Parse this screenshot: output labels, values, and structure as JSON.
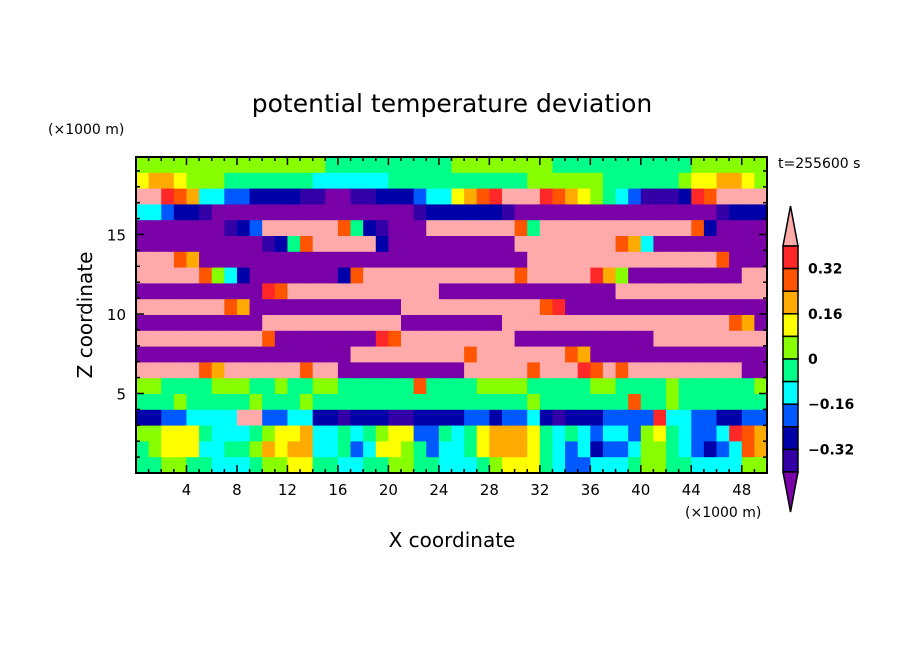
{
  "chart_data": {
    "type": "heatmap",
    "title": "potential temperature deviation",
    "xlabel": "X coordinate",
    "ylabel": "Z coordinate",
    "x_units": "(×1000 m)",
    "y_units": "(×1000 m)",
    "time_label": "t=255600 s",
    "xlim": [
      0,
      50
    ],
    "ylim": [
      0,
      19.875
    ],
    "x_ticks": [
      "4",
      "8",
      "12",
      "16",
      "20",
      "24",
      "28",
      "32",
      "36",
      "40",
      "44",
      "48"
    ],
    "x_tick_values": [
      4,
      8,
      12,
      16,
      20,
      24,
      28,
      32,
      36,
      40,
      44,
      48
    ],
    "y_ticks": [
      "5",
      "10",
      "15"
    ],
    "y_tick_values": [
      5,
      10,
      15
    ],
    "levels": [
      -0.4,
      -0.32,
      -0.24,
      -0.16,
      -0.08,
      0,
      0.08,
      0.16,
      0.24,
      0.32,
      0.4
    ],
    "colorbar_labels": [
      "0.32",
      "0.16",
      "0",
      "−0.16",
      "−0.32"
    ],
    "colorbar_label_values": [
      0.32,
      0.16,
      0,
      -0.16,
      -0.32
    ],
    "colors": [
      "#7a00a8",
      "#3300a8",
      "#0000a8",
      "#0058ff",
      "#00ffff",
      "#00ff88",
      "#88ff00",
      "#ffff00",
      "#ffaa00",
      "#ff5500",
      "#ff2828",
      "#ffaaaa"
    ],
    "grid_encoding": "each char is a color class index 0-11 (0..9, A=10, B=11); rows top (z=19.9) to bottom (z=0), columns x=0..50",
    "grid": [
      "66666666666666655555555556666666655555555555666666",
      "78876665555555444444555555555556666665555556778876",
      "BBA9844332222110011222344789ABBBA98765431112A9BBBB",
      "44322100000000000000001222222100000000000000001222",
      "0000000123BBBBBB9521000BBBBBBB95BBBBBBBBBBBB920000",
      "00000000001259BBBBB20000000000BBBBBBBB984000000000",
      "BBB9800000000000000000000000000BBBBBBBBBBBBBBB9000",
      "BBBBB9642000000029BBBBBBBBBBBB9BBBBBA86000000000BB",
      "0000000000A9BBBBBBBBBBBB00000000000000BBBBBBBBBBBB",
      "BBBBBBB98000000000000BBBBBBBBBBB9A0000000000000000",
      "0000000000BBBBBBBBBBB00000000BBBBBBBBBBBBBBBBBB980",
      "BBBBBBBBBB900000000A9BBBBBBBBB00000000000BBBBBBBBB",
      "00000000000000000BBBBBBBBB9BBBBBBB9800000000000000",
      "BBBBB98BBBBBB9BB0000000000BBBBB9BBBA9B9BBBBBBBBB00",
      "66555566655655665555559555566665555566555565555556",
      "55565555565556555555555555555556555555595565555555",
      "22334444BB3344221222112222332334212223333A44332233",
      "66777544456778445456773354578887545434436754334A98",
      "56777445568788445347765344578887543423346654323498",
      "55665544456677554455665544456777543344456655444466"
    ]
  }
}
